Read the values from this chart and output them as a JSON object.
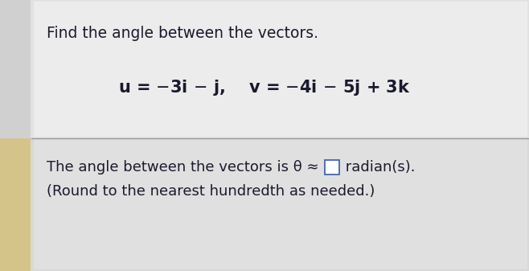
{
  "title": "Find the angle between the vectors.",
  "bottom_line1_before": "The angle between the vectors is θ ≈ ",
  "bottom_line1_after": " radian(s).",
  "bottom_line2": "(Round to the nearest hundredth as needed.)",
  "bg_color": "#e8e8e8",
  "top_panel_color": "#dcdcdc",
  "bottom_panel_color": "#d8d8d8",
  "white_panel_color": "#f5f5f5",
  "left_strip_color": "#d4c48a",
  "divider_color": "#999999",
  "box_color": "#ffffff",
  "box_border": "#4466aa",
  "text_color": "#1a1a2e",
  "title_fontsize": 13.5,
  "eq_fontsize": 15,
  "body_fontsize": 13,
  "small_fontsize": 11.5
}
